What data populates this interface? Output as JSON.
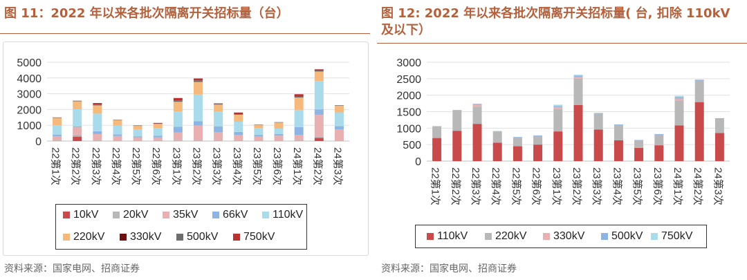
{
  "left": {
    "title": "图 11：2022 年以来各批次隔离开关招标量（台）",
    "source": "资料来源：国家电网、招商证券",
    "colors": [
      "#c94a4a",
      "#b8b8b8",
      "#e8b0b0",
      "#8db4e2",
      "#a9dbea",
      "#f5b97c",
      "#6d1010",
      "#6e6e6e",
      "#b83232"
    ]
  },
  "right": {
    "title": "图 12: 2022 年以来各批次隔离开关招标量( 台, 扣除 110kV 及以下）",
    "source": "资料来源：国家电网、招商证券",
    "colors": [
      "#c94a4a",
      "#b8b8b8",
      "#e8b0b0",
      "#8db4e2",
      "#a9dbea"
    ]
  },
  "chart_data": [
    {
      "type": "bar",
      "stacked": true,
      "categories": [
        "22第1次",
        "22第2次",
        "22第3次",
        "22第4次",
        "22第5次",
        "22第6次",
        "23第1次",
        "23第2次",
        "23第3次",
        "23第4次",
        "23第5次",
        "23第6次",
        "24第1次",
        "24第2次",
        "24第3次"
      ],
      "yticks": [
        0,
        1000,
        2000,
        3000,
        4000,
        5000
      ],
      "ylim": [
        0,
        5000
      ],
      "grid": true,
      "series": [
        {
          "name": "10kV",
          "values": [
            0,
            280,
            0,
            0,
            0,
            0,
            0,
            0,
            0,
            0,
            0,
            0,
            0,
            200,
            0
          ]
        },
        {
          "name": "20kV",
          "values": [
            60,
            120,
            60,
            40,
            40,
            50,
            60,
            60,
            50,
            50,
            40,
            40,
            60,
            80,
            40
          ]
        },
        {
          "name": "35kV",
          "values": [
            250,
            470,
            380,
            280,
            200,
            180,
            480,
            920,
            520,
            330,
            250,
            300,
            320,
            1380,
            700
          ]
        },
        {
          "name": "66kV",
          "values": [
            100,
            50,
            180,
            100,
            60,
            100,
            370,
            270,
            350,
            200,
            100,
            100,
            500,
            350,
            200
          ]
        },
        {
          "name": "110kV",
          "values": [
            600,
            1100,
            1120,
            560,
            440,
            500,
            960,
            1700,
            950,
            650,
            430,
            350,
            1100,
            1800,
            880
          ]
        },
        {
          "name": "220kV",
          "values": [
            460,
            500,
            520,
            340,
            220,
            260,
            620,
            800,
            440,
            440,
            210,
            380,
            780,
            600,
            430
          ]
        },
        {
          "name": "330kV",
          "values": [
            0,
            0,
            0,
            0,
            0,
            0,
            0,
            0,
            0,
            0,
            0,
            0,
            0,
            0,
            0
          ]
        },
        {
          "name": "500kV",
          "values": [
            30,
            40,
            50,
            30,
            30,
            30,
            90,
            100,
            50,
            40,
            20,
            30,
            70,
            60,
            30
          ]
        },
        {
          "name": "750kV",
          "values": [
            0,
            0,
            100,
            0,
            0,
            30,
            150,
            120,
            30,
            100,
            0,
            0,
            140,
            80,
            0
          ]
        }
      ]
    },
    {
      "type": "bar",
      "stacked": true,
      "categories": [
        "22第1次",
        "22第2次",
        "22第3次",
        "22第4次",
        "22第5次",
        "22第6次",
        "23第1次",
        "23第2次",
        "23第3次",
        "23第4次",
        "23第5次",
        "23第6次",
        "24第1次",
        "24第2次",
        "24第3次"
      ],
      "yticks": [
        0,
        500,
        1000,
        1500,
        2000,
        2500,
        3000
      ],
      "ylim": [
        0,
        3000
      ],
      "grid": true,
      "series": [
        {
          "name": "110kV",
          "values": [
            700,
            920,
            1130,
            560,
            450,
            500,
            900,
            1700,
            960,
            630,
            400,
            480,
            1080,
            1790,
            850
          ]
        },
        {
          "name": "220kV",
          "values": [
            360,
            620,
            520,
            340,
            260,
            260,
            680,
            800,
            480,
            460,
            220,
            320,
            760,
            650,
            430
          ]
        },
        {
          "name": "330kV",
          "values": [
            0,
            0,
            80,
            0,
            0,
            0,
            60,
            60,
            0,
            0,
            0,
            0,
            60,
            0,
            0
          ]
        },
        {
          "name": "500kV",
          "values": [
            0,
            10,
            10,
            10,
            20,
            20,
            30,
            30,
            20,
            20,
            20,
            20,
            40,
            30,
            20
          ]
        },
        {
          "name": "750kV",
          "values": [
            0,
            0,
            0,
            0,
            0,
            0,
            40,
            30,
            0,
            0,
            0,
            0,
            40,
            0,
            0
          ]
        }
      ]
    }
  ]
}
